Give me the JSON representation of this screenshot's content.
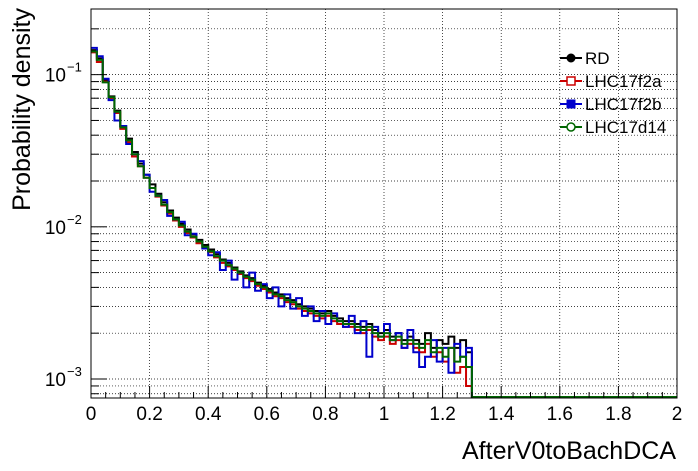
{
  "chart_data": {
    "type": "line",
    "title": "",
    "xlabel": "AfterV0toBachDCA",
    "ylabel": "Probability density",
    "xlim": [
      0,
      2
    ],
    "ylim": [
      0.00075,
      0.27
    ],
    "ylog": true,
    "grid": true,
    "legend_position": "top-right",
    "bin_width": 0.02,
    "x_ticks": [
      {
        "value": 0,
        "label": "0"
      },
      {
        "value": 0.2,
        "label": "0.2"
      },
      {
        "value": 0.4,
        "label": "0.4"
      },
      {
        "value": 0.6,
        "label": "0.6"
      },
      {
        "value": 0.8,
        "label": "0.8"
      },
      {
        "value": 1.0,
        "label": "1"
      },
      {
        "value": 1.2,
        "label": "1.2"
      },
      {
        "value": 1.4,
        "label": "1.4"
      },
      {
        "value": 1.6,
        "label": "1.6"
      },
      {
        "value": 1.8,
        "label": "1.8"
      },
      {
        "value": 2.0,
        "label": "2"
      }
    ],
    "y_ticks": [
      {
        "value": 0.001,
        "base": "10",
        "exp": "−3"
      },
      {
        "value": 0.01,
        "base": "10",
        "exp": "−2"
      },
      {
        "value": 0.1,
        "base": "10",
        "exp": "−1"
      }
    ],
    "series": [
      {
        "name": "RD",
        "color": "#000000",
        "marker": "filled-circle",
        "values": [
          0.145,
          0.128,
          0.092,
          0.072,
          0.058,
          0.046,
          0.038,
          0.031,
          0.026,
          0.022,
          0.019,
          0.0165,
          0.0145,
          0.0128,
          0.0115,
          0.0105,
          0.0096,
          0.0089,
          0.0082,
          0.0076,
          0.0071,
          0.0066,
          0.0061,
          0.0058,
          0.0054,
          0.0051,
          0.0048,
          0.0046,
          0.0043,
          0.0041,
          0.0039,
          0.0037,
          0.0036,
          0.0034,
          0.0033,
          0.0031,
          0.003,
          0.0029,
          0.0028,
          0.0027,
          0.0028,
          0.0026,
          0.0025,
          0.0024,
          0.0024,
          0.0023,
          0.0022,
          0.0023,
          0.0021,
          0.002,
          0.0021,
          0.0019,
          0.002,
          0.0018,
          0.0019,
          0.0018,
          0.0017,
          0.002,
          0.0016,
          0.0018,
          0.0017,
          0.0019,
          0.0016,
          0.0018,
          0.0015
        ]
      },
      {
        "name": "LHC17f2a",
        "color": "#cc0000",
        "marker": "open-square",
        "values": [
          0.14,
          0.121,
          0.09,
          0.07,
          0.056,
          0.044,
          0.036,
          0.029,
          0.025,
          0.021,
          0.018,
          0.0158,
          0.0138,
          0.0122,
          0.011,
          0.01,
          0.0091,
          0.0085,
          0.0078,
          0.0073,
          0.0068,
          0.0063,
          0.0058,
          0.0055,
          0.0052,
          0.0049,
          0.0046,
          0.0044,
          0.0041,
          0.0039,
          0.0037,
          0.0035,
          0.0034,
          0.0032,
          0.0031,
          0.0029,
          0.0028,
          0.0027,
          0.0026,
          0.0025,
          0.0026,
          0.0024,
          0.0023,
          0.0022,
          0.0022,
          0.0021,
          0.002,
          0.0021,
          0.0019,
          0.0018,
          0.0019,
          0.0017,
          0.0018,
          0.0016,
          0.0017,
          0.0016,
          0.0015,
          0.0017,
          0.0014,
          0.0015,
          0.0013,
          0.0016,
          0.0011,
          0.0012,
          0.0009
        ]
      },
      {
        "name": "LHC17f2b",
        "color": "#0000cc",
        "marker": "filled-square",
        "values": [
          0.15,
          0.132,
          0.094,
          0.068,
          0.05,
          0.046,
          0.035,
          0.03,
          0.027,
          0.022,
          0.017,
          0.016,
          0.015,
          0.0118,
          0.0112,
          0.0108,
          0.0088,
          0.009,
          0.008,
          0.0072,
          0.0065,
          0.0068,
          0.0052,
          0.006,
          0.0045,
          0.005,
          0.004,
          0.005,
          0.0038,
          0.0042,
          0.0034,
          0.004,
          0.003,
          0.0036,
          0.0029,
          0.0034,
          0.0026,
          0.003,
          0.0024,
          0.0028,
          0.0023,
          0.0027,
          0.0024,
          0.0022,
          0.0026,
          0.002,
          0.0024,
          0.0014,
          0.0022,
          0.0019,
          0.0023,
          0.0018,
          0.002,
          0.0016,
          0.0021,
          0.0015,
          0.0012,
          0.0014,
          0.0018,
          0.0013,
          0.0016,
          0.0011,
          0.0017,
          0.0014,
          0.0016
        ]
      },
      {
        "name": "LHC17d14",
        "color": "#006600",
        "marker": "open-circle",
        "values": [
          0.142,
          0.125,
          0.089,
          0.071,
          0.057,
          0.045,
          0.037,
          0.03,
          0.025,
          0.021,
          0.018,
          0.016,
          0.014,
          0.0125,
          0.0112,
          0.0102,
          0.0093,
          0.0086,
          0.008,
          0.0074,
          0.0069,
          0.0064,
          0.006,
          0.0056,
          0.0053,
          0.005,
          0.0047,
          0.0045,
          0.0042,
          0.004,
          0.0038,
          0.0036,
          0.0035,
          0.0033,
          0.0032,
          0.003,
          0.0029,
          0.0028,
          0.0027,
          0.0026,
          0.0027,
          0.0025,
          0.0024,
          0.0023,
          0.0023,
          0.0022,
          0.0021,
          0.0022,
          0.002,
          0.0019,
          0.002,
          0.0018,
          0.0019,
          0.0017,
          0.0018,
          0.0017,
          0.0016,
          0.0018,
          0.0015,
          0.0016,
          0.0014,
          0.0016,
          0.0013,
          0.0014,
          0.0012
        ]
      }
    ]
  }
}
